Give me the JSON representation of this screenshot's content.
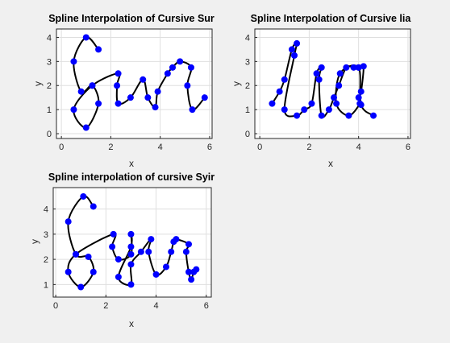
{
  "chart_data": [
    {
      "type": "line",
      "title": "Spline Interpolation of Cursive Sur",
      "xlabel": "x",
      "ylabel": "y",
      "xlim": [
        -0.2,
        6.1
      ],
      "ylim": [
        -0.2,
        4.35
      ],
      "xticks": [
        "0",
        "2",
        "4",
        "6"
      ],
      "yticks": [
        "0",
        "1",
        "2",
        "3",
        "4"
      ],
      "grid": true,
      "line_color": "#000000",
      "marker_color": "#0000ff",
      "points": [
        [
          1.5,
          3.5
        ],
        [
          1.0,
          4.0
        ],
        [
          0.5,
          3.0
        ],
        [
          0.8,
          1.75
        ],
        [
          1.25,
          2.0
        ],
        [
          1.5,
          1.25
        ],
        [
          1.0,
          0.25
        ],
        [
          0.5,
          1.0
        ],
        [
          1.25,
          2.0
        ],
        [
          2.3,
          2.5
        ],
        [
          2.25,
          2.0
        ],
        [
          2.3,
          1.25
        ],
        [
          2.8,
          1.5
        ],
        [
          3.3,
          2.25
        ],
        [
          3.5,
          1.5
        ],
        [
          3.8,
          1.1
        ],
        [
          3.9,
          1.75
        ],
        [
          4.3,
          2.5
        ],
        [
          4.5,
          2.75
        ],
        [
          4.8,
          3.0
        ],
        [
          5.25,
          2.75
        ],
        [
          5.1,
          2.0
        ],
        [
          5.3,
          1.0
        ],
        [
          5.8,
          1.5
        ]
      ]
    },
    {
      "type": "line",
      "title": "Spline Interpolation of Cursive lia",
      "xlabel": "x",
      "ylabel": "y",
      "xlim": [
        -0.2,
        6.1
      ],
      "ylim": [
        -0.2,
        4.35
      ],
      "xticks": [
        "0",
        "2",
        "4",
        "6"
      ],
      "yticks": [
        "0",
        "1",
        "2",
        "3",
        "4"
      ],
      "grid": true,
      "line_color": "#000000",
      "marker_color": "#0000ff",
      "points": [
        [
          0.5,
          1.25
        ],
        [
          0.8,
          1.75
        ],
        [
          1.0,
          2.25
        ],
        [
          1.3,
          3.5
        ],
        [
          1.5,
          3.75
        ],
        [
          1.4,
          3.25
        ],
        [
          1.0,
          1.0
        ],
        [
          1.5,
          0.75
        ],
        [
          1.8,
          1.0
        ],
        [
          2.1,
          1.25
        ],
        [
          2.3,
          2.5
        ],
        [
          2.5,
          2.75
        ],
        [
          2.4,
          2.25
        ],
        [
          2.5,
          0.75
        ],
        [
          2.8,
          1.0
        ],
        [
          3.0,
          1.5
        ],
        [
          3.2,
          2.0
        ],
        [
          3.5,
          2.75
        ],
        [
          3.8,
          2.75
        ],
        [
          4.0,
          2.75
        ],
        [
          4.2,
          2.8
        ],
        [
          4.1,
          1.75
        ],
        [
          4.0,
          1.5
        ],
        [
          4.05,
          1.25
        ],
        [
          3.6,
          0.75
        ],
        [
          3.1,
          1.25
        ],
        [
          3.25,
          2.5
        ],
        [
          4.0,
          2.75
        ],
        [
          4.1,
          1.2
        ],
        [
          4.6,
          0.75
        ]
      ]
    },
    {
      "type": "line",
      "title": "Spline interpolation of cursive Syir",
      "xlabel": "x",
      "ylabel": "y",
      "xlim": [
        -0.1,
        6.2
      ],
      "ylim": [
        0.5,
        4.85
      ],
      "xticks": [
        "0",
        "2",
        "4",
        "6"
      ],
      "yticks": [
        "1",
        "2",
        "3",
        "4"
      ],
      "grid": true,
      "line_color": "#000000",
      "marker_color": "#0000ff",
      "points": [
        [
          1.5,
          4.1
        ],
        [
          1.1,
          4.5
        ],
        [
          0.5,
          3.5
        ],
        [
          0.8,
          2.2
        ],
        [
          1.3,
          2.1
        ],
        [
          1.5,
          1.5
        ],
        [
          1.0,
          0.9
        ],
        [
          0.5,
          1.5
        ],
        [
          0.8,
          2.2
        ],
        [
          2.3,
          3.0
        ],
        [
          2.25,
          2.5
        ],
        [
          2.5,
          2.0
        ],
        [
          3.0,
          2.2
        ],
        [
          3.0,
          3.0
        ],
        [
          3.0,
          2.5
        ],
        [
          2.5,
          1.3
        ],
        [
          3.0,
          1.0
        ],
        [
          3.0,
          1.8
        ],
        [
          3.4,
          2.3
        ],
        [
          3.8,
          2.8
        ],
        [
          3.7,
          2.3
        ],
        [
          4.0,
          1.4
        ],
        [
          4.4,
          1.7
        ],
        [
          4.6,
          2.3
        ],
        [
          4.7,
          2.7
        ],
        [
          4.8,
          2.8
        ],
        [
          5.3,
          2.6
        ],
        [
          5.2,
          2.3
        ],
        [
          5.3,
          1.5
        ],
        [
          5.4,
          1.2
        ],
        [
          5.5,
          1.5
        ],
        [
          5.6,
          1.6
        ]
      ]
    }
  ]
}
